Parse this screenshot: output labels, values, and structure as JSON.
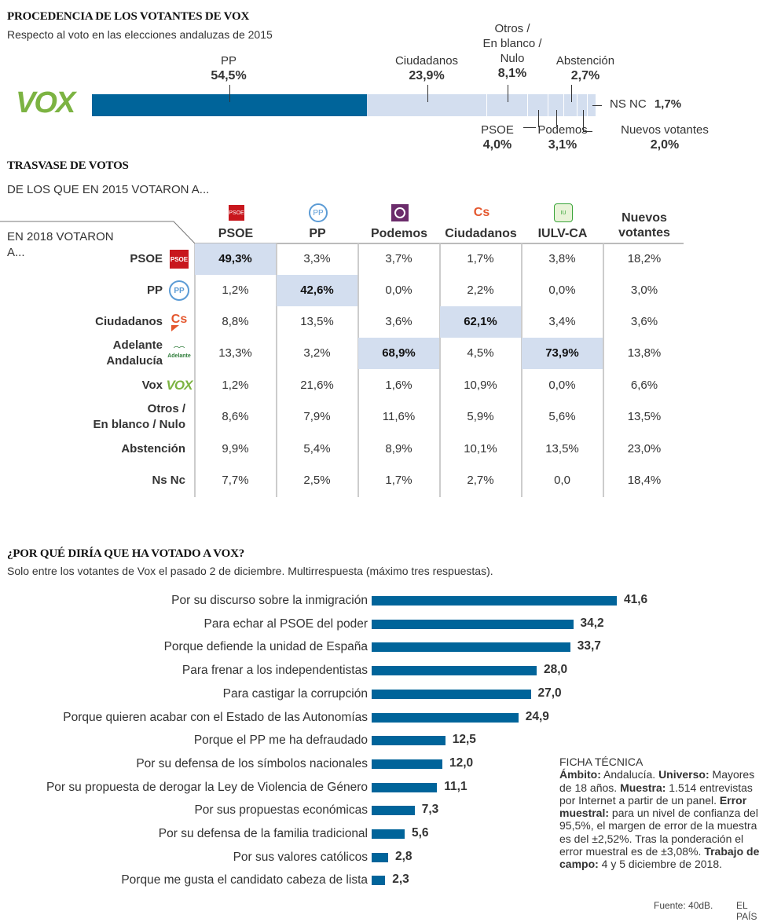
{
  "section1": {
    "title": "PROCEDENCIA DE LOS VOTANTES DE VOX",
    "subtitle": "Respecto al voto en las elecciones andaluzas de 2015",
    "logo": "VOX"
  },
  "colors": {
    "pp": "#00649a",
    "rest": "#d3deef",
    "vox": "#7cb342",
    "psoe": "#c8161d",
    "ppLogo": "#5b9bd5",
    "podemos": "#6b2c6b",
    "cs": "#e4572e",
    "iu": "#3aa53a"
  },
  "chart_data": [
    {
      "type": "bar",
      "title": "PROCEDENCIA DE LOS VOTANTES DE VOX",
      "stacked": true,
      "categories": [
        "PP",
        "Ciudadanos",
        "Otros / En blanco / Nulo",
        "PSOE",
        "Podemos",
        "Abstención",
        "Nuevos votantes",
        "NS NC"
      ],
      "labels": [
        "54,5%",
        "23,9%",
        "8,1%",
        "4,0%",
        "3,1%",
        "2,7%",
        "2,0%",
        "1,7%"
      ],
      "values": [
        54.5,
        23.9,
        8.1,
        4.0,
        3.1,
        2.7,
        2.0,
        1.7
      ]
    },
    {
      "type": "table",
      "title": "TRASVASE DE VOTOS",
      "subtitle": "DE LOS QUE EN 2015 VOTARON A...",
      "rowheader": "EN 2018 VOTARON A...",
      "columns": [
        "PSOE",
        "PP",
        "Podemos",
        "Ciudadanos",
        "IULV-CA",
        "Nuevos votantes"
      ],
      "rows": [
        {
          "label": "PSOE",
          "logo": "PSOE",
          "values": [
            "49,3%",
            "3,3%",
            "3,7%",
            "1,7%",
            "3,8%",
            "18,2%"
          ],
          "hl": 0
        },
        {
          "label": "PP",
          "logo": "PP",
          "values": [
            "1,2%",
            "42,6%",
            "0,0%",
            "2,2%",
            "0,0%",
            "3,0%"
          ],
          "hl": 1
        },
        {
          "label": "Ciudadanos",
          "logo": "Cs",
          "values": [
            "8,8%",
            "13,5%",
            "3,6%",
            "62,1%",
            "3,4%",
            "3,6%"
          ],
          "hl": 3
        },
        {
          "label": "Adelante Andalucía",
          "logo": "Adelante",
          "values": [
            "13,3%",
            "3,2%",
            "68,9%",
            "4,5%",
            "73,9%",
            "13,8%"
          ],
          "hl": [
            2,
            4
          ]
        },
        {
          "label": "Vox",
          "logo": "VOX",
          "values": [
            "1,2%",
            "21,6%",
            "1,6%",
            "10,9%",
            "0,0%",
            "6,6%"
          ]
        },
        {
          "label": "Otros / En blanco / Nulo",
          "values": [
            "8,6%",
            "7,9%",
            "11,6%",
            "5,9%",
            "5,6%",
            "13,5%"
          ]
        },
        {
          "label": "Abstención",
          "values": [
            "9,9%",
            "5,4%",
            "8,9%",
            "10,1%",
            "13,5%",
            "23,0%"
          ]
        },
        {
          "label": "Ns Nc",
          "values": [
            "7,7%",
            "2,5%",
            "1,7%",
            "2,7%",
            "0,0",
            "18,4%"
          ]
        }
      ]
    },
    {
      "type": "bar",
      "orientation": "horizontal",
      "title": "¿POR QUÉ DIRÍA QUE HA VOTADO A VOX?",
      "subtitle": "Solo entre los votantes de Vox el pasado 2 de diciembre. Multirrespuesta (máximo tres respuestas).",
      "categories": [
        "Por su discurso sobre la inmigración",
        "Para echar al PSOE del poder",
        "Porque defiende la unidad de España",
        "Para frenar a los independentistas",
        "Para castigar la corrupción",
        "Porque quieren acabar con el Estado de las Autonomías",
        "Porque el PP me ha defraudado",
        "Por su defensa de los símbolos nacionales",
        "Por su propuesta de derogar la Ley de Violencia de Género",
        "Por sus propuestas económicas",
        "Por su defensa de la familia tradicional",
        "Por sus valores católicos",
        "Porque me gusta el candidato cabeza de lista"
      ],
      "values": [
        41.6,
        34.2,
        33.7,
        28.0,
        27.0,
        24.9,
        12.5,
        12.0,
        11.1,
        7.3,
        5.6,
        2.8,
        2.3
      ],
      "labels": [
        "41,6",
        "34,2",
        "33,7",
        "28,0",
        "27,0",
        "24,9",
        "12,5",
        "12,0",
        "11,1",
        "7,3",
        "5,6",
        "2,8",
        "2,3"
      ]
    }
  ],
  "ficha": {
    "title": "FICHA TÉCNICA",
    "parts": [
      [
        "Ámbito:",
        true
      ],
      [
        " Andalucía. ",
        false
      ],
      [
        "Universo:",
        true
      ],
      [
        " Mayores de 18 años. ",
        false
      ],
      [
        "Muestra:",
        true
      ],
      [
        " 1.514 entrevistas por Internet a partir de un panel. ",
        false
      ],
      [
        "Error muestral:",
        true
      ],
      [
        " para un nivel de confianza del 95,5%, el margen de error de la muestra es del ±2,52%. Tras la ponderación el error muestral es de ±3,08%. ",
        false
      ],
      [
        "Trabajo de campo:",
        true
      ],
      [
        " 4 y 5 diciembre de 2018.",
        false
      ]
    ]
  },
  "footer": {
    "source": "Fuente: 40dB.",
    "brand": "EL PAÍS"
  }
}
